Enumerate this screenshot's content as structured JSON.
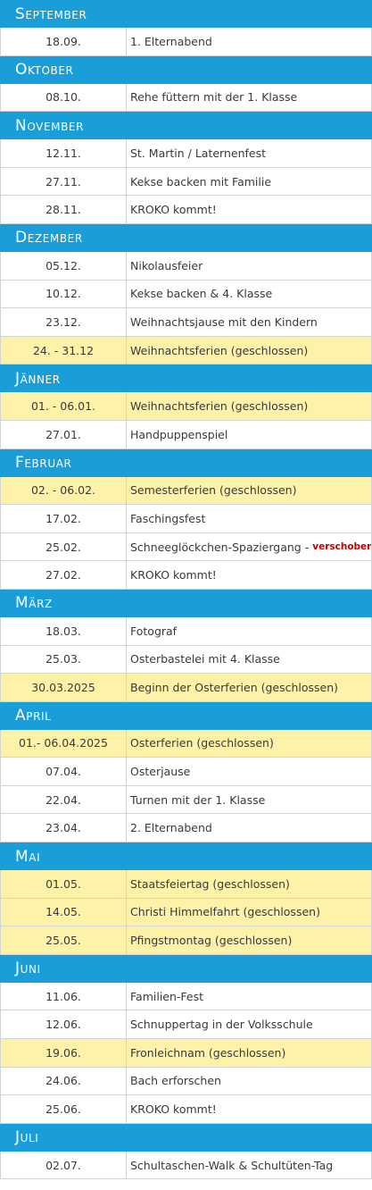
{
  "months": [
    {
      "name": "September",
      "events": [
        {
          "date": "18.09.",
          "text": "1. Elternabend"
        }
      ]
    },
    {
      "name": "Oktober",
      "events": [
        {
          "date": "08.10.",
          "text": "Rehe füttern mit der 1. Klasse"
        }
      ]
    },
    {
      "name": "November",
      "events": [
        {
          "date": "12.11.",
          "text": "St. Martin / Laternenfest"
        },
        {
          "date": "27.11.",
          "text": "Kekse backen mit Familie"
        },
        {
          "date": "28.11.",
          "text": "KROKO kommt!"
        }
      ]
    },
    {
      "name": "Dezember",
      "events": [
        {
          "date": "05.12.",
          "text": "Nikolausfeier"
        },
        {
          "date": "10.12.",
          "text": "Kekse backen & 4. Klasse"
        },
        {
          "date": "23.12.",
          "text": "Weihnachtsjause mit den Kindern"
        },
        {
          "date": "24. - 31.12",
          "text": "Weihnachtsferien (geschlossen)",
          "closed": true
        }
      ]
    },
    {
      "name": "Jänner",
      "events": [
        {
          "date": "01. - 06.01.",
          "text": "Weihnachtsferien (geschlossen)",
          "closed": true
        },
        {
          "date": "27.01.",
          "text": "Handpuppenspiel"
        }
      ]
    },
    {
      "name": "Februar",
      "events": [
        {
          "date": "02. - 06.02.",
          "text": "Semesterferien (geschlossen)",
          "closed": true
        },
        {
          "date": "17.02.",
          "text": "Faschingsfest"
        },
        {
          "date": "25.02.",
          "text": "Schneeglöckchen-Spaziergang - ",
          "note": "verschoben"
        },
        {
          "date": "27.02.",
          "text": "KROKO kommt!"
        }
      ]
    },
    {
      "name": "März",
      "events": [
        {
          "date": "18.03.",
          "text": "Fotograf"
        },
        {
          "date": "25.03.",
          "text": "Osterbastelei mit 4. Klasse"
        },
        {
          "date": "30.03.2025",
          "text": "Beginn der Osterferien (geschlossen)",
          "closed": true
        }
      ]
    },
    {
      "name": "April",
      "events": [
        {
          "date": "01.- 06.04.2025",
          "text": "Osterferien (geschlossen)",
          "closed": true
        },
        {
          "date": "07.04.",
          "text": "Osterjause"
        },
        {
          "date": "22.04.",
          "text": "Turnen mit der 1. Klasse"
        },
        {
          "date": "23.04.",
          "text": "2. Elternabend"
        }
      ]
    },
    {
      "name": "Mai",
      "events": [
        {
          "date": "01.05.",
          "text": "Staatsfeiertag (geschlossen)",
          "closed": true
        },
        {
          "date": "14.05.",
          "text": "Christi Himmelfahrt (geschlossen)",
          "closed": true
        },
        {
          "date": "25.05.",
          "text": "Pfingstmontag (geschlossen)",
          "closed": true
        }
      ]
    },
    {
      "name": "Juni",
      "events": [
        {
          "date": "11.06.",
          "text": "Familien-Fest"
        },
        {
          "date": "12.06.",
          "text": "Schnuppertag in der Volksschule"
        },
        {
          "date": "19.06.",
          "text": "Fronleichnam (geschlossen)",
          "closed": true
        },
        {
          "date": "24.06.",
          "text": "Bach erforschen"
        },
        {
          "date": "25.06.",
          "text": "KROKO kommt!"
        }
      ]
    },
    {
      "name": "Juli",
      "events": [
        {
          "date": "02.07.",
          "text": "Schultaschen-Walk & Schultüten-Tag"
        }
      ]
    }
  ]
}
